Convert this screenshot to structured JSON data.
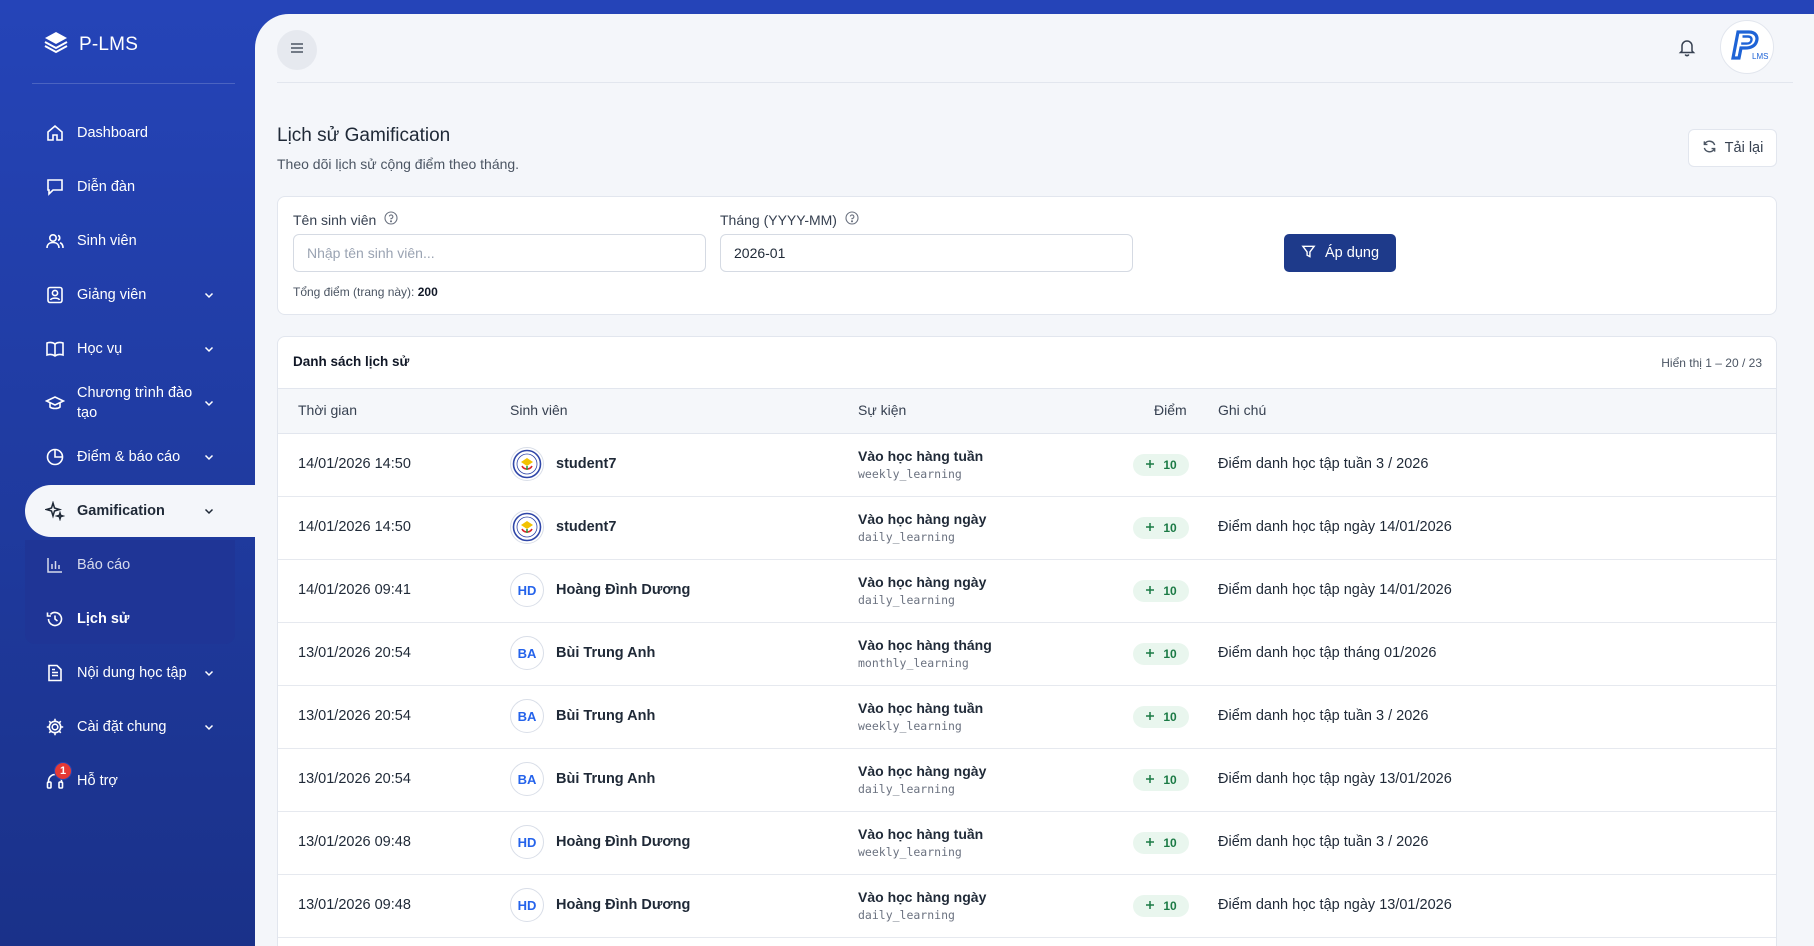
{
  "app": {
    "name": "P-LMS"
  },
  "sidebar": {
    "items": [
      {
        "key": "dashboard",
        "label": "Dashboard",
        "icon": "home-icon"
      },
      {
        "key": "forum",
        "label": "Diễn đàn",
        "icon": "chat-icon"
      },
      {
        "key": "students",
        "label": "Sinh viên",
        "icon": "users-icon"
      },
      {
        "key": "lecturers",
        "label": "Giảng viên",
        "icon": "id-badge-icon"
      },
      {
        "key": "academic",
        "label": "Học vụ",
        "icon": "book-icon"
      },
      {
        "key": "programs",
        "label": "Chương trình đào tạo",
        "icon": "graduation-cap-icon"
      },
      {
        "key": "grades",
        "label": "Điểm & báo cáo",
        "icon": "pie-chart-icon"
      },
      {
        "key": "gamification",
        "label": "Gamification",
        "icon": "sparkles-icon"
      },
      {
        "key": "report",
        "label": "Báo cáo",
        "icon": "bar-chart-icon"
      },
      {
        "key": "history",
        "label": "Lịch sử",
        "icon": "history-icon"
      },
      {
        "key": "content",
        "label": "Nội dung học tập",
        "icon": "document-icon"
      },
      {
        "key": "settings",
        "label": "Cài đặt chung",
        "icon": "gear-icon"
      },
      {
        "key": "support",
        "label": "Hỗ trợ",
        "icon": "headset-icon"
      }
    ],
    "support_badge": "1"
  },
  "header": {
    "title": "Lịch sử Gamification",
    "subtitle": "Theo dõi lịch sử cộng điểm theo tháng.",
    "reload_label": "Tải lại"
  },
  "filters": {
    "student_label": "Tên sinh viên",
    "student_placeholder": "Nhập tên sinh viên...",
    "student_value": "",
    "month_label": "Tháng (YYYY-MM)",
    "month_value": "2026-01",
    "apply_label": "Áp dụng",
    "total_label": "Tổng điểm (trang này):",
    "total_value": "200"
  },
  "table": {
    "title": "Danh sách lịch sử",
    "range": "Hiển thị 1 – 20 / 23",
    "columns": [
      "Thời gian",
      "Sinh viên",
      "Sự kiện",
      "Điểm",
      "Ghi chú"
    ],
    "rows": [
      {
        "time": "14/01/2026 14:50",
        "avatar": "",
        "student": "student7",
        "event": "Vào học hàng tuần",
        "code": "weekly_learning",
        "points": "10",
        "note": "Điểm danh học tập tuần 3 / 2026"
      },
      {
        "time": "14/01/2026 14:50",
        "avatar": "",
        "student": "student7",
        "event": "Vào học hàng ngày",
        "code": "daily_learning",
        "points": "10",
        "note": "Điểm danh học tập ngày 14/01/2026"
      },
      {
        "time": "14/01/2026 09:41",
        "avatar": "HD",
        "student": "Hoàng Đình Dương",
        "event": "Vào học hàng ngày",
        "code": "daily_learning",
        "points": "10",
        "note": "Điểm danh học tập ngày 14/01/2026"
      },
      {
        "time": "13/01/2026 20:54",
        "avatar": "BA",
        "student": "Bùi Trung Anh",
        "event": "Vào học hàng tháng",
        "code": "monthly_learning",
        "points": "10",
        "note": "Điểm danh học tập tháng 01/2026"
      },
      {
        "time": "13/01/2026 20:54",
        "avatar": "BA",
        "student": "Bùi Trung Anh",
        "event": "Vào học hàng tuần",
        "code": "weekly_learning",
        "points": "10",
        "note": "Điểm danh học tập tuần 3 / 2026"
      },
      {
        "time": "13/01/2026 20:54",
        "avatar": "BA",
        "student": "Bùi Trung Anh",
        "event": "Vào học hàng ngày",
        "code": "daily_learning",
        "points": "10",
        "note": "Điểm danh học tập ngày 13/01/2026"
      },
      {
        "time": "13/01/2026 09:48",
        "avatar": "HD",
        "student": "Hoàng Đình Dương",
        "event": "Vào học hàng tuần",
        "code": "weekly_learning",
        "points": "10",
        "note": "Điểm danh học tập tuần 3 / 2026"
      },
      {
        "time": "13/01/2026 09:48",
        "avatar": "HD",
        "student": "Hoàng Đình Dương",
        "event": "Vào học hàng ngày",
        "code": "daily_learning",
        "points": "10",
        "note": "Điểm danh học tập ngày 13/01/2026"
      }
    ]
  },
  "colors": {
    "sidebar": "#2544b8",
    "primary_button": "#1e3a8a",
    "points_bg": "#e9f6ee",
    "points_text": "#1b7a45",
    "badge": "#e53935"
  }
}
